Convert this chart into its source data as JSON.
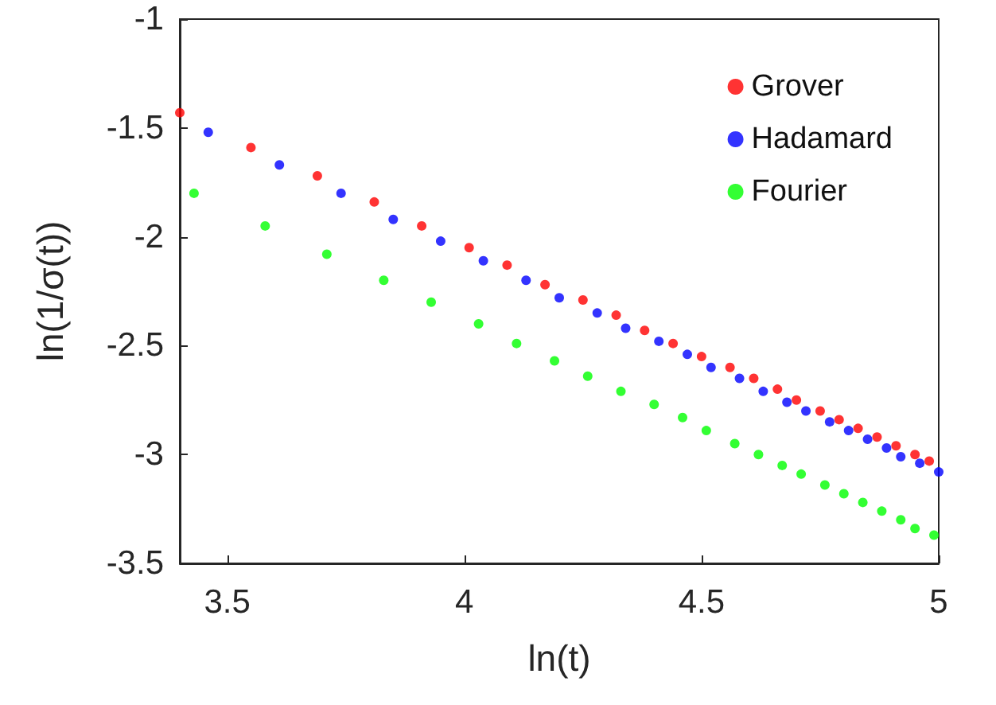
{
  "chart_data": {
    "type": "scatter",
    "xlabel": "ln(t)",
    "ylabel": "ln(1/σ(t))",
    "xlim": [
      3.4,
      5
    ],
    "xticks": [
      3.5,
      4,
      4.5,
      5
    ],
    "ylim": [
      -3.5,
      -1
    ],
    "yticks": [
      -3.5,
      -3,
      -2.5,
      -2,
      -1.5,
      -1
    ],
    "grid": false,
    "legend": "top right",
    "marker": "circle",
    "series": [
      {
        "name": "Grover",
        "color": "#ff0000",
        "x": [
          3.4,
          3.55,
          3.69,
          3.81,
          3.91,
          4.01,
          4.09,
          4.17,
          4.25,
          4.32,
          4.38,
          4.44,
          4.5,
          4.56,
          4.61,
          4.66,
          4.7,
          4.75,
          4.79,
          4.83,
          4.87,
          4.91,
          4.95,
          4.98
        ],
        "values": [
          -1.43,
          -1.59,
          -1.72,
          -1.84,
          -1.95,
          -2.05,
          -2.13,
          -2.22,
          -2.29,
          -2.36,
          -2.43,
          -2.49,
          -2.55,
          -2.6,
          -2.65,
          -2.7,
          -2.75,
          -2.8,
          -2.84,
          -2.88,
          -2.92,
          -2.96,
          -3.0,
          -3.03
        ]
      },
      {
        "name": "Hadamard",
        "color": "#0000ff",
        "x": [
          3.46,
          3.61,
          3.74,
          3.85,
          3.95,
          4.04,
          4.13,
          4.2,
          4.28,
          4.34,
          4.41,
          4.47,
          4.52,
          4.58,
          4.63,
          4.68,
          4.72,
          4.77,
          4.81,
          4.85,
          4.89,
          4.92,
          4.96,
          5.0
        ],
        "values": [
          -1.52,
          -1.67,
          -1.8,
          -1.92,
          -2.02,
          -2.11,
          -2.2,
          -2.28,
          -2.35,
          -2.42,
          -2.48,
          -2.54,
          -2.6,
          -2.65,
          -2.71,
          -2.76,
          -2.8,
          -2.85,
          -2.89,
          -2.93,
          -2.97,
          -3.01,
          -3.04,
          -3.08
        ]
      },
      {
        "name": "Fourier",
        "color": "#00ff00",
        "x": [
          3.43,
          3.58,
          3.71,
          3.83,
          3.93,
          4.03,
          4.11,
          4.19,
          4.26,
          4.33,
          4.4,
          4.46,
          4.51,
          4.57,
          4.62,
          4.67,
          4.71,
          4.76,
          4.8,
          4.84,
          4.88,
          4.92,
          4.95,
          4.99
        ],
        "values": [
          -1.8,
          -1.95,
          -2.08,
          -2.2,
          -2.3,
          -2.4,
          -2.49,
          -2.57,
          -2.64,
          -2.71,
          -2.77,
          -2.83,
          -2.89,
          -2.95,
          -3.0,
          -3.05,
          -3.09,
          -3.14,
          -3.18,
          -3.22,
          -3.26,
          -3.3,
          -3.34,
          -3.37
        ]
      }
    ]
  }
}
